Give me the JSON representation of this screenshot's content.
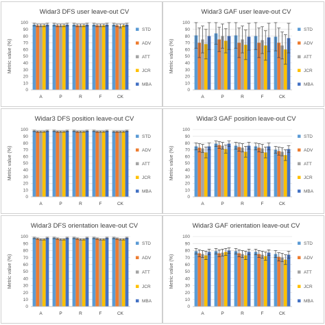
{
  "chart_data": [
    {
      "type": "bar",
      "title": "Widar3 DFS user leave-out CV",
      "xlabel": "",
      "ylabel": "Metric value (%)",
      "ylim": [
        0,
        100
      ],
      "yticks": [
        0,
        10,
        20,
        30,
        40,
        50,
        60,
        70,
        80,
        90,
        100
      ],
      "categories": [
        "A",
        "P",
        "R",
        "F",
        "CK"
      ],
      "legend_position": "right",
      "error_bars": true,
      "series": [
        {
          "name": "STD",
          "color": "#5b9bd5",
          "values": [
            97,
            97,
            97,
            97,
            97
          ],
          "errors": [
            2,
            2,
            2,
            2,
            2
          ]
        },
        {
          "name": "ADV",
          "color": "#ed7d31",
          "values": [
            96,
            96,
            96,
            96,
            96
          ],
          "errors": [
            2,
            2,
            2,
            2,
            2
          ]
        },
        {
          "name": "ATT",
          "color": "#a5a5a5",
          "values": [
            96,
            96,
            96,
            96,
            95
          ],
          "errors": [
            2,
            2,
            2,
            2,
            3
          ]
        },
        {
          "name": "JCR",
          "color": "#ffc000",
          "values": [
            96,
            96,
            96,
            96,
            96
          ],
          "errors": [
            2,
            2,
            2,
            2,
            2
          ]
        },
        {
          "name": "MBA",
          "color": "#4472c4",
          "values": [
            97,
            97,
            97,
            97,
            97
          ],
          "errors": [
            2,
            2,
            2,
            2,
            2
          ]
        }
      ]
    },
    {
      "type": "bar",
      "title": "Widar3 GAF user leave-out CV",
      "xlabel": "",
      "ylabel": "Metric value (%)",
      "ylim": [
        0,
        100
      ],
      "yticks": [
        0,
        10,
        20,
        30,
        40,
        50,
        60,
        70,
        80,
        90,
        100
      ],
      "categories": [
        "A",
        "P",
        "R",
        "F",
        "CK"
      ],
      "legend_position": "right",
      "error_bars": true,
      "series": [
        {
          "name": "STD",
          "color": "#5b9bd5",
          "values": [
            81,
            84,
            81,
            80,
            79
          ],
          "errors": [
            19,
            16,
            19,
            20,
            21
          ]
        },
        {
          "name": "ADV",
          "color": "#ed7d31",
          "values": [
            70,
            75,
            70,
            70,
            70
          ],
          "errors": [
            22,
            18,
            22,
            22,
            22
          ]
        },
        {
          "name": "ATT",
          "color": "#a5a5a5",
          "values": [
            75,
            80,
            75,
            74,
            66
          ],
          "errors": [
            20,
            18,
            20,
            20,
            20
          ]
        },
        {
          "name": "JCR",
          "color": "#ffc000",
          "values": [
            68,
            73,
            67,
            66,
            60
          ],
          "errors": [
            22,
            18,
            22,
            22,
            22
          ]
        },
        {
          "name": "MBA",
          "color": "#4472c4",
          "values": [
            80,
            80,
            79,
            78,
            77
          ],
          "errors": [
            20,
            20,
            20,
            21,
            22
          ]
        }
      ]
    },
    {
      "type": "bar",
      "title": "Widar3 DFS position leave-out CV",
      "xlabel": "",
      "ylabel": "Metric value (%)",
      "ylim": [
        0,
        100
      ],
      "yticks": [
        0,
        10,
        20,
        30,
        40,
        50,
        60,
        70,
        80,
        90,
        100
      ],
      "categories": [
        "A",
        "P",
        "R",
        "F",
        "CK"
      ],
      "legend_position": "right",
      "error_bars": true,
      "series": [
        {
          "name": "STD",
          "color": "#5b9bd5",
          "values": [
            98,
            98,
            98,
            98,
            97
          ],
          "errors": [
            1,
            1,
            1,
            1,
            1
          ]
        },
        {
          "name": "ADV",
          "color": "#ed7d31",
          "values": [
            97,
            97,
            97,
            97,
            97
          ],
          "errors": [
            1,
            1,
            1,
            1,
            1
          ]
        },
        {
          "name": "ATT",
          "color": "#a5a5a5",
          "values": [
            97,
            97,
            97,
            97,
            97
          ],
          "errors": [
            1,
            1,
            1,
            1,
            1
          ]
        },
        {
          "name": "JCR",
          "color": "#ffc000",
          "values": [
            97,
            97,
            97,
            97,
            97
          ],
          "errors": [
            1,
            1,
            1,
            1,
            1
          ]
        },
        {
          "name": "MBA",
          "color": "#4472c4",
          "values": [
            98,
            98,
            98,
            98,
            98
          ],
          "errors": [
            1,
            1,
            1,
            1,
            1
          ]
        }
      ]
    },
    {
      "type": "bar",
      "title": "Widar3 GAF position leave-out CV",
      "xlabel": "",
      "ylabel": "Metric value (%)",
      "ylim": [
        0,
        100
      ],
      "yticks": [
        0,
        10,
        20,
        30,
        40,
        50,
        60,
        70,
        80,
        90,
        100
      ],
      "categories": [
        "A",
        "P",
        "R",
        "F",
        "CK"
      ],
      "legend_position": "right",
      "error_bars": true,
      "series": [
        {
          "name": "STD",
          "color": "#5b9bd5",
          "values": [
            75,
            79,
            76,
            75,
            70
          ],
          "errors": [
            5,
            4,
            5,
            5,
            5
          ]
        },
        {
          "name": "ADV",
          "color": "#ed7d31",
          "values": [
            73,
            77,
            74,
            73,
            68
          ],
          "errors": [
            6,
            5,
            6,
            6,
            6
          ]
        },
        {
          "name": "ATT",
          "color": "#a5a5a5",
          "values": [
            72,
            76,
            73,
            72,
            67
          ],
          "errors": [
            6,
            5,
            6,
            6,
            6
          ]
        },
        {
          "name": "JCR",
          "color": "#ffc000",
          "values": [
            66,
            71,
            67,
            66,
            62
          ],
          "errors": [
            8,
            6,
            8,
            8,
            8
          ]
        },
        {
          "name": "MBA",
          "color": "#4472c4",
          "values": [
            75,
            79,
            76,
            75,
            71
          ],
          "errors": [
            5,
            4,
            5,
            5,
            5
          ]
        }
      ]
    },
    {
      "type": "bar",
      "title": "Widar3 DFS orientation leave-out CV",
      "xlabel": "",
      "ylabel": "Metric value (%)",
      "ylim": [
        0,
        100
      ],
      "yticks": [
        0,
        10,
        20,
        30,
        40,
        50,
        60,
        70,
        80,
        90,
        100
      ],
      "categories": [
        "A",
        "P",
        "R",
        "F",
        "CK"
      ],
      "legend_position": "right",
      "error_bars": true,
      "series": [
        {
          "name": "STD",
          "color": "#5b9bd5",
          "values": [
            98,
            98,
            98,
            98,
            98
          ],
          "errors": [
            1,
            1,
            1,
            1,
            1
          ]
        },
        {
          "name": "ADV",
          "color": "#ed7d31",
          "values": [
            97,
            97,
            97,
            97,
            97
          ],
          "errors": [
            1,
            1,
            1,
            1,
            1
          ]
        },
        {
          "name": "ATT",
          "color": "#a5a5a5",
          "values": [
            96,
            96,
            96,
            96,
            96
          ],
          "errors": [
            1,
            1,
            1,
            1,
            1
          ]
        },
        {
          "name": "JCR",
          "color": "#ffc000",
          "values": [
            96,
            96,
            96,
            96,
            96
          ],
          "errors": [
            1,
            1,
            1,
            1,
            1
          ]
        },
        {
          "name": "MBA",
          "color": "#4472c4",
          "values": [
            98,
            98,
            98,
            98,
            98
          ],
          "errors": [
            1,
            1,
            1,
            1,
            1
          ]
        }
      ]
    },
    {
      "type": "bar",
      "title": "Widar3 GAF orientation leave-out CV",
      "xlabel": "",
      "ylabel": "Metric value (%)",
      "ylim": [
        0,
        100
      ],
      "yticks": [
        0,
        10,
        20,
        30,
        40,
        50,
        60,
        70,
        80,
        90,
        100
      ],
      "categories": [
        "A",
        "P",
        "R",
        "F",
        "CK"
      ],
      "legend_position": "right",
      "error_bars": true,
      "series": [
        {
          "name": "STD",
          "color": "#5b9bd5",
          "values": [
            79,
            79,
            79,
            78,
            75
          ],
          "errors": [
            4,
            4,
            4,
            4,
            5
          ]
        },
        {
          "name": "ADV",
          "color": "#ed7d31",
          "values": [
            76,
            76,
            76,
            75,
            71
          ],
          "errors": [
            5,
            5,
            5,
            5,
            6
          ]
        },
        {
          "name": "ATT",
          "color": "#a5a5a5",
          "values": [
            75,
            77,
            75,
            74,
            70
          ],
          "errors": [
            5,
            5,
            5,
            5,
            6
          ]
        },
        {
          "name": "JCR",
          "color": "#ffc000",
          "values": [
            73,
            78,
            73,
            72,
            67
          ],
          "errors": [
            6,
            5,
            6,
            6,
            7
          ]
        },
        {
          "name": "MBA",
          "color": "#4472c4",
          "values": [
            78,
            80,
            78,
            77,
            74
          ],
          "errors": [
            4,
            4,
            4,
            4,
            5
          ]
        }
      ]
    }
  ]
}
